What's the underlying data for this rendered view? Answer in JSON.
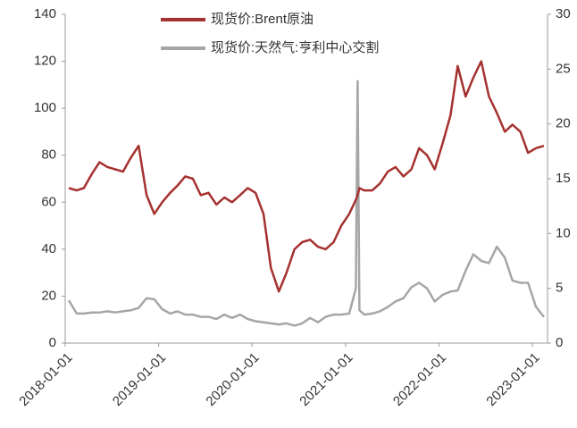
{
  "chart_data": {
    "type": "line",
    "x": [
      "2018-01-15",
      "2018-02-15",
      "2018-03-15",
      "2018-04-15",
      "2018-05-15",
      "2018-06-15",
      "2018-07-15",
      "2018-08-15",
      "2018-09-15",
      "2018-10-15",
      "2018-11-15",
      "2018-12-15",
      "2019-01-15",
      "2019-02-15",
      "2019-03-15",
      "2019-04-15",
      "2019-05-15",
      "2019-06-15",
      "2019-07-15",
      "2019-08-15",
      "2019-09-15",
      "2019-10-15",
      "2019-11-15",
      "2019-12-15",
      "2020-01-15",
      "2020-02-15",
      "2020-03-15",
      "2020-04-15",
      "2020-05-15",
      "2020-06-15",
      "2020-07-15",
      "2020-08-15",
      "2020-09-15",
      "2020-10-15",
      "2020-11-15",
      "2020-12-15",
      "2021-01-15",
      "2021-02-10",
      "2021-02-17",
      "2021-02-24",
      "2021-03-15",
      "2021-04-15",
      "2021-05-15",
      "2021-06-15",
      "2021-07-15",
      "2021-08-15",
      "2021-09-15",
      "2021-10-15",
      "2021-11-15",
      "2021-12-15",
      "2022-01-15",
      "2022-02-15",
      "2022-03-15",
      "2022-04-15",
      "2022-05-15",
      "2022-06-15",
      "2022-07-15",
      "2022-08-15",
      "2022-09-15",
      "2022-10-15",
      "2022-11-15",
      "2022-12-15",
      "2023-01-15",
      "2023-02-15"
    ],
    "series": [
      {
        "name": "现货价:Brent原油",
        "color": "#a5312f",
        "axis": "y",
        "values": [
          66,
          65,
          66,
          72,
          77,
          75,
          74,
          73,
          79,
          84,
          63,
          55,
          60,
          64,
          67,
          71,
          70,
          63,
          64,
          59,
          62,
          60,
          63,
          66,
          64,
          55,
          32,
          22,
          30,
          40,
          43,
          44,
          41,
          40,
          43,
          50,
          55,
          61,
          63,
          66,
          65,
          65,
          68,
          73,
          75,
          71,
          74,
          83,
          80,
          74,
          85,
          97,
          118,
          105,
          113,
          120,
          105,
          98,
          90,
          93,
          90,
          81,
          83,
          84
        ]
      },
      {
        "name": "现货价:天然气:亨利中心交割",
        "color": "#a6a6a6",
        "axis": "y2",
        "values": [
          3.9,
          2.7,
          2.7,
          2.8,
          2.8,
          2.9,
          2.8,
          2.9,
          3.0,
          3.2,
          4.1,
          4.0,
          3.1,
          2.7,
          2.9,
          2.6,
          2.6,
          2.4,
          2.4,
          2.2,
          2.6,
          2.3,
          2.6,
          2.2,
          2.0,
          1.9,
          1.8,
          1.7,
          1.8,
          1.6,
          1.8,
          2.3,
          1.9,
          2.4,
          2.6,
          2.6,
          2.7,
          5.0,
          23.9,
          3.0,
          2.6,
          2.7,
          2.9,
          3.3,
          3.8,
          4.1,
          5.1,
          5.5,
          5.0,
          3.8,
          4.4,
          4.7,
          4.8,
          6.6,
          8.1,
          7.5,
          7.3,
          8.8,
          7.8,
          5.7,
          5.5,
          5.5,
          3.3,
          2.4
        ]
      }
    ],
    "xlim": [
      "2018-01-01",
      "2023-03-01"
    ],
    "xticks": [
      "2018-01-01",
      "2019-01-01",
      "2020-01-01",
      "2021-01-01",
      "2022-01-01",
      "2023-01-01"
    ],
    "ylim": [
      0,
      140
    ],
    "yticks": [
      0,
      20,
      40,
      60,
      80,
      100,
      120,
      140
    ],
    "y2lim": [
      0,
      30
    ],
    "y2ticks": [
      0,
      5,
      10,
      15,
      20,
      25,
      30
    ],
    "grid": false,
    "legend": "top"
  }
}
